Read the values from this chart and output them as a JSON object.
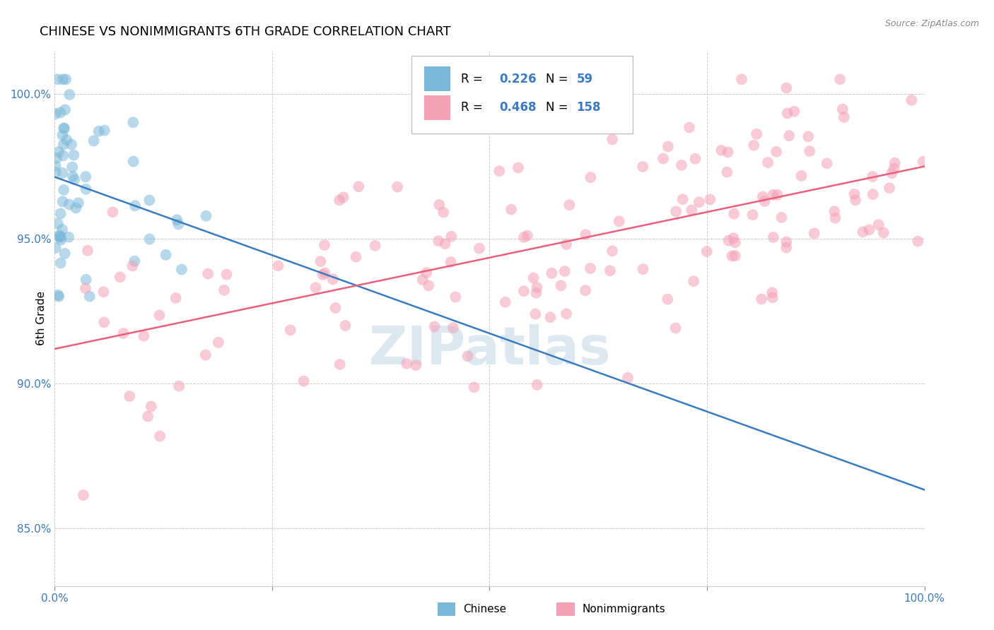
{
  "title": "CHINESE VS NONIMMIGRANTS 6TH GRADE CORRELATION CHART",
  "source": "Source: ZipAtlas.com",
  "ylabel": "6th Grade",
  "legend_chinese_R": 0.226,
  "legend_chinese_N": 59,
  "legend_nonimm_R": 0.468,
  "legend_nonimm_N": 158,
  "blue_scatter_color": "#7ab8d9",
  "pink_scatter_color": "#f4a0b5",
  "blue_line_color": "#3a7abf",
  "pink_line_color": "#e8607a",
  "background_color": "#ffffff",
  "grid_color": "#cccccc",
  "axis_label_color": "#3a7abf",
  "watermark_color": "#dce8f0",
  "xlim": [
    0.0,
    1.0
  ],
  "ylim": [
    0.83,
    1.015
  ],
  "y_ticks": [
    0.85,
    0.9,
    0.95,
    1.0
  ],
  "y_tick_labels": [
    "85.0%",
    "90.0%",
    "95.0%",
    "100.0%"
  ],
  "x_ticks": [
    0.0,
    0.25,
    0.5,
    0.75,
    1.0
  ],
  "x_tick_labels_show": [
    "0.0%",
    "",
    "",
    "",
    "100.0%"
  ],
  "title_fontsize": 13,
  "tick_fontsize": 11,
  "label_fontsize": 11,
  "scatter_size": 130,
  "scatter_alpha": 0.55
}
